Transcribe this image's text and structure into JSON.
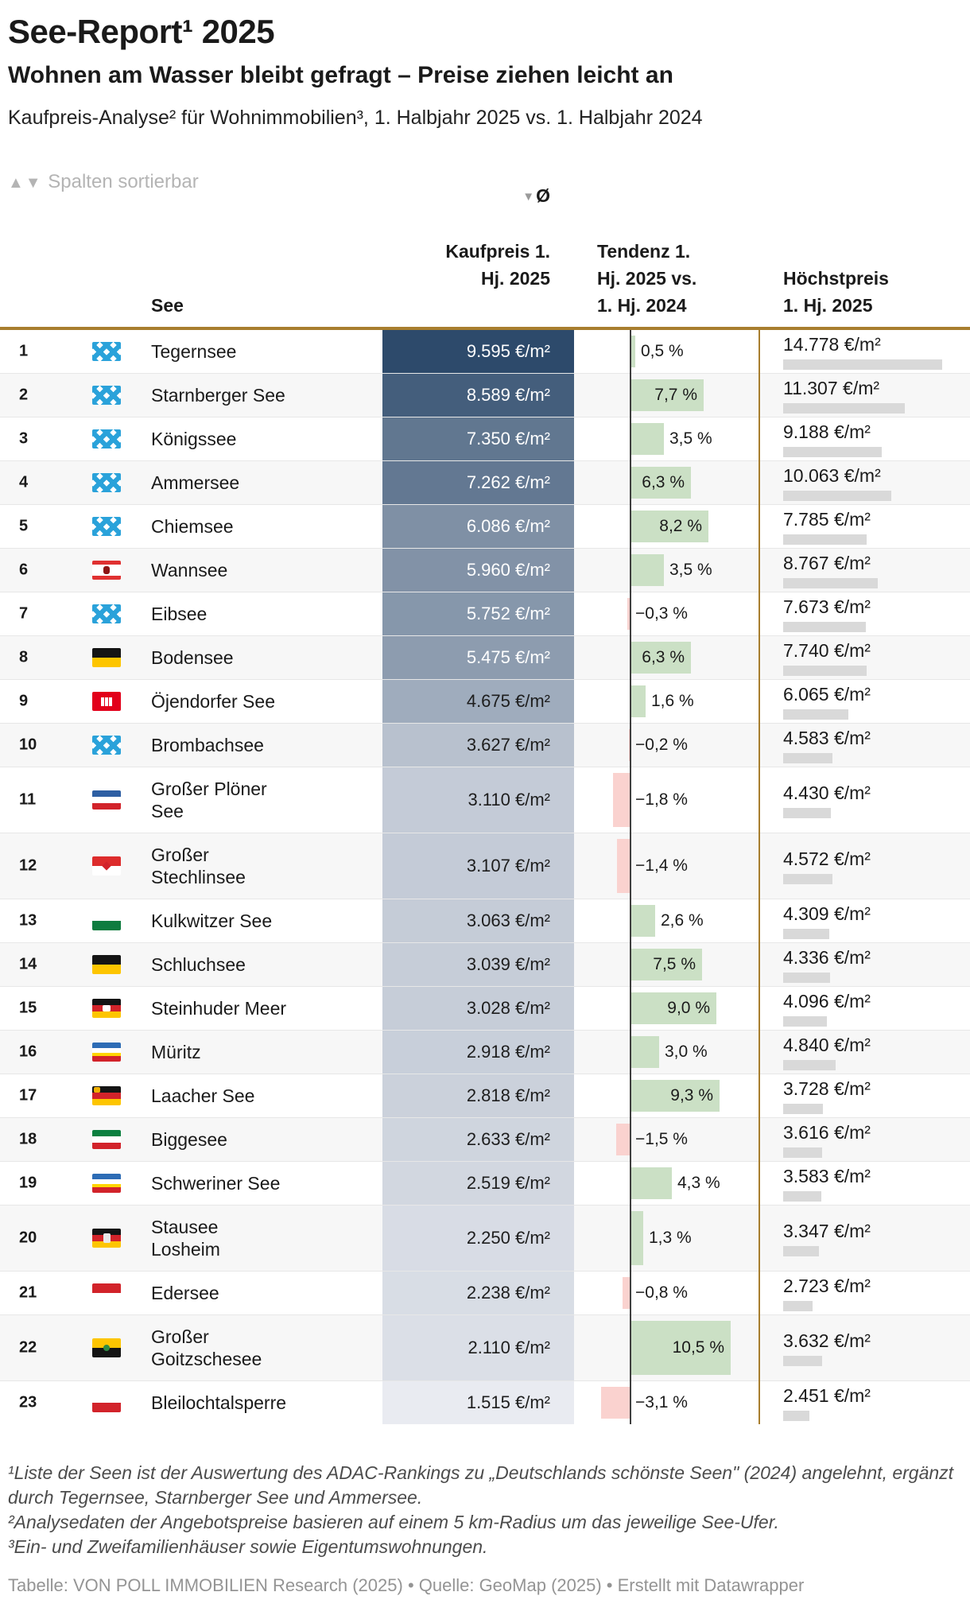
{
  "header": {
    "title": "See-Report¹ 2025",
    "subtitle": "Wohnen am Wasser bleibt gefragt – Preise ziehen leicht an",
    "description": "Kaufpreis-Analyse² für Wohnimmobilien³, 1. Halbjahr 2025 vs. 1. Halbjahr 2024",
    "sort_icons": "▲▼",
    "sort_hint": "Spalten sortierbar"
  },
  "columns": {
    "see": "See",
    "kaufpreis_sort_indicator": "▼",
    "kaufpreis_line1": "Ø",
    "kaufpreis_rest": "Kaufpreis 1.\nHj. 2025",
    "tendenz": "Tendenz 1.\nHj. 2025 vs.\n1. Hj. 2024",
    "hoechstpreis": "Höchstpreis\n1. Hj. 2025"
  },
  "rows": [
    {
      "rank": "1",
      "state": "bavaria",
      "name": "Tegernsee",
      "kaufpreis": 9595,
      "kaufpreis_label": "9.595 €/m²",
      "tendenz": 0.5,
      "tendenz_label": "0,5 %",
      "hoechstpreis": 14778,
      "hoechstpreis_label": "14.778 €/m²"
    },
    {
      "rank": "2",
      "state": "bavaria",
      "name": "Starnberger See",
      "kaufpreis": 8589,
      "kaufpreis_label": "8.589 €/m²",
      "tendenz": 7.7,
      "tendenz_label": "7,7 %",
      "hoechstpreis": 11307,
      "hoechstpreis_label": "11.307 €/m²"
    },
    {
      "rank": "3",
      "state": "bavaria",
      "name": "Königssee",
      "kaufpreis": 7350,
      "kaufpreis_label": "7.350 €/m²",
      "tendenz": 3.5,
      "tendenz_label": "3,5 %",
      "hoechstpreis": 9188,
      "hoechstpreis_label": "9.188 €/m²"
    },
    {
      "rank": "4",
      "state": "bavaria",
      "name": "Ammersee",
      "kaufpreis": 7262,
      "kaufpreis_label": "7.262 €/m²",
      "tendenz": 6.3,
      "tendenz_label": "6,3 %",
      "hoechstpreis": 10063,
      "hoechstpreis_label": "10.063 €/m²"
    },
    {
      "rank": "5",
      "state": "bavaria",
      "name": "Chiemsee",
      "kaufpreis": 6086,
      "kaufpreis_label": "6.086 €/m²",
      "tendenz": 8.2,
      "tendenz_label": "8,2 %",
      "hoechstpreis": 7785,
      "hoechstpreis_label": "7.785 €/m²"
    },
    {
      "rank": "6",
      "state": "berlin",
      "name": "Wannsee",
      "kaufpreis": 5960,
      "kaufpreis_label": "5.960 €/m²",
      "tendenz": 3.5,
      "tendenz_label": "3,5 %",
      "hoechstpreis": 8767,
      "hoechstpreis_label": "8.767 €/m²"
    },
    {
      "rank": "7",
      "state": "bavaria",
      "name": "Eibsee",
      "kaufpreis": 5752,
      "kaufpreis_label": "5.752 €/m²",
      "tendenz": -0.3,
      "tendenz_label": "−0,3 %",
      "hoechstpreis": 7673,
      "hoechstpreis_label": "7.673 €/m²"
    },
    {
      "rank": "8",
      "state": "baden_wuerttemberg",
      "name": "Bodensee",
      "kaufpreis": 5475,
      "kaufpreis_label": "5.475 €/m²",
      "tendenz": 6.3,
      "tendenz_label": "6,3 %",
      "hoechstpreis": 7740,
      "hoechstpreis_label": "7.740 €/m²"
    },
    {
      "rank": "9",
      "state": "hamburg",
      "name": "Öjendorfer See",
      "kaufpreis": 4675,
      "kaufpreis_label": "4.675 €/m²",
      "tendenz": 1.6,
      "tendenz_label": "1,6 %",
      "hoechstpreis": 6065,
      "hoechstpreis_label": "6.065 €/m²"
    },
    {
      "rank": "10",
      "state": "bavaria",
      "name": "Brombachsee",
      "kaufpreis": 3627,
      "kaufpreis_label": "3.627 €/m²",
      "tendenz": -0.2,
      "tendenz_label": "−0,2 %",
      "hoechstpreis": 4583,
      "hoechstpreis_label": "4.583 €/m²"
    },
    {
      "rank": "11",
      "state": "schleswig_holstein",
      "name": "Großer Plöner\nSee",
      "kaufpreis": 3110,
      "kaufpreis_label": "3.110 €/m²",
      "tendenz": -1.8,
      "tendenz_label": "−1,8 %",
      "hoechstpreis": 4430,
      "hoechstpreis_label": "4.430 €/m²"
    },
    {
      "rank": "12",
      "state": "brandenburg",
      "name": "Großer\nStechlinsee",
      "kaufpreis": 3107,
      "kaufpreis_label": "3.107 €/m²",
      "tendenz": -1.4,
      "tendenz_label": "−1,4 %",
      "hoechstpreis": 4572,
      "hoechstpreis_label": "4.572 €/m²"
    },
    {
      "rank": "13",
      "state": "sachsen",
      "name": "Kulkwitzer See",
      "kaufpreis": 3063,
      "kaufpreis_label": "3.063 €/m²",
      "tendenz": 2.6,
      "tendenz_label": "2,6 %",
      "hoechstpreis": 4309,
      "hoechstpreis_label": "4.309 €/m²"
    },
    {
      "rank": "14",
      "state": "baden_wuerttemberg",
      "name": "Schluchsee",
      "kaufpreis": 3039,
      "kaufpreis_label": "3.039 €/m²",
      "tendenz": 7.5,
      "tendenz_label": "7,5 %",
      "hoechstpreis": 4336,
      "hoechstpreis_label": "4.336 €/m²"
    },
    {
      "rank": "15",
      "state": "niedersachsen",
      "name": "Steinhuder Meer",
      "kaufpreis": 3028,
      "kaufpreis_label": "3.028 €/m²",
      "tendenz": 9.0,
      "tendenz_label": "9,0 %",
      "hoechstpreis": 4096,
      "hoechstpreis_label": "4.096 €/m²"
    },
    {
      "rank": "16",
      "state": "mecklenburg_vorpommern",
      "name": "Müritz",
      "kaufpreis": 2918,
      "kaufpreis_label": "2.918 €/m²",
      "tendenz": 3.0,
      "tendenz_label": "3,0 %",
      "hoechstpreis": 4840,
      "hoechstpreis_label": "4.840 €/m²"
    },
    {
      "rank": "17",
      "state": "rheinland_pfalz",
      "name": "Laacher See",
      "kaufpreis": 2818,
      "kaufpreis_label": "2.818 €/m²",
      "tendenz": 9.3,
      "tendenz_label": "9,3 %",
      "hoechstpreis": 3728,
      "hoechstpreis_label": "3.728 €/m²"
    },
    {
      "rank": "18",
      "state": "nrw",
      "name": "Biggesee",
      "kaufpreis": 2633,
      "kaufpreis_label": "2.633 €/m²",
      "tendenz": -1.5,
      "tendenz_label": "−1,5 %",
      "hoechstpreis": 3616,
      "hoechstpreis_label": "3.616 €/m²"
    },
    {
      "rank": "19",
      "state": "mecklenburg_vorpommern",
      "name": "Schweriner See",
      "kaufpreis": 2519,
      "kaufpreis_label": "2.519 €/m²",
      "tendenz": 4.3,
      "tendenz_label": "4,3 %",
      "hoechstpreis": 3583,
      "hoechstpreis_label": "3.583 €/m²"
    },
    {
      "rank": "20",
      "state": "saarland",
      "name": "Stausee\nLosheim",
      "kaufpreis": 2250,
      "kaufpreis_label": "2.250 €/m²",
      "tendenz": 1.3,
      "tendenz_label": "1,3 %",
      "hoechstpreis": 3347,
      "hoechstpreis_label": "3.347 €/m²"
    },
    {
      "rank": "21",
      "state": "hessen",
      "name": "Edersee",
      "kaufpreis": 2238,
      "kaufpreis_label": "2.238 €/m²",
      "tendenz": -0.8,
      "tendenz_label": "−0,8 %",
      "hoechstpreis": 2723,
      "hoechstpreis_label": "2.723 €/m²"
    },
    {
      "rank": "22",
      "state": "sachsen_anhalt",
      "name": "Großer\nGoitzschesee",
      "kaufpreis": 2110,
      "kaufpreis_label": "2.110 €/m²",
      "tendenz": 10.5,
      "tendenz_label": "10,5 %",
      "hoechstpreis": 3632,
      "hoechstpreis_label": "3.632 €/m²"
    },
    {
      "rank": "23",
      "state": "thueringen",
      "name": "Bleilochtalsperre",
      "kaufpreis": 1515,
      "kaufpreis_label": "1.515 €/m²",
      "tendenz": -3.1,
      "tendenz_label": "−3,1 %",
      "hoechstpreis": 2451,
      "hoechstpreis_label": "2.451 €/m²"
    }
  ],
  "colors": {
    "accent_gold": "#a87e2e",
    "baseline_dark": "#3f3f3f",
    "positive_bar": "#cbe0c5",
    "negative_bar": "#fad2cf",
    "kaufpreis_min": "#e9ebf1",
    "kaufpreis_max": "#2d4a6b",
    "hoechstpreis_bar": "#d9d9d9",
    "row_alt": "#f7f7f7"
  },
  "footnotes": [
    "¹Liste der Seen ist der Auswertung des ADAC-Rankings zu „Deutschlands schönste Seen\" (2024) angelehnt, ergänzt durch Tegernsee, Starnberger See und Ammersee.",
    "²Analysedaten der Angebotspreise basieren auf einem 5 km-Radius um das jeweilige See-Ufer.",
    "³Ein- und Zweifamilienhäuser sowie Eigentumswohnungen."
  ],
  "footer": "Tabelle: VON POLL IMMOBILIEN Research (2025) • Quelle: GeoMap (2025) • Erstellt mit Datawrapper",
  "chart_data": {
    "type": "table",
    "title": "See-Report¹ 2025",
    "subtitle": "Wohnen am Wasser bleibt gefragt – Preise ziehen leicht an",
    "categories": [
      "Tegernsee",
      "Starnberger See",
      "Königssee",
      "Ammersee",
      "Chiemsee",
      "Wannsee",
      "Eibsee",
      "Bodensee",
      "Öjendorfer See",
      "Brombachsee",
      "Großer Plöner See",
      "Großer Stechlinsee",
      "Kulkwitzer See",
      "Schluchsee",
      "Steinhuder Meer",
      "Müritz",
      "Laacher See",
      "Biggesee",
      "Schweriner See",
      "Stausee Losheim",
      "Edersee",
      "Großer Goitzschesee",
      "Bleilochtalsperre"
    ],
    "series": [
      {
        "name": "Ø Kaufpreis 1. Hj. 2025 (€/m²)",
        "values": [
          9595,
          8589,
          7350,
          7262,
          6086,
          5960,
          5752,
          5475,
          4675,
          3627,
          3110,
          3107,
          3063,
          3039,
          3028,
          2918,
          2818,
          2633,
          2519,
          2250,
          2238,
          2110,
          1515
        ]
      },
      {
        "name": "Tendenz 1. Hj. 2025 vs. 1. Hj. 2024 (%)",
        "values": [
          0.5,
          7.7,
          3.5,
          6.3,
          8.2,
          3.5,
          -0.3,
          6.3,
          1.6,
          -0.2,
          -1.8,
          -1.4,
          2.6,
          7.5,
          9.0,
          3.0,
          9.3,
          -1.5,
          4.3,
          1.3,
          -0.8,
          10.5,
          -3.1
        ]
      },
      {
        "name": "Höchstpreis 1. Hj. 2025 (€/m²)",
        "values": [
          14778,
          11307,
          9188,
          10063,
          7785,
          8767,
          7673,
          7740,
          6065,
          4583,
          4430,
          4572,
          4309,
          4336,
          4096,
          4840,
          3728,
          3616,
          3583,
          3347,
          2723,
          3632,
          2451
        ]
      }
    ],
    "legend_position": "none",
    "grid": false
  }
}
